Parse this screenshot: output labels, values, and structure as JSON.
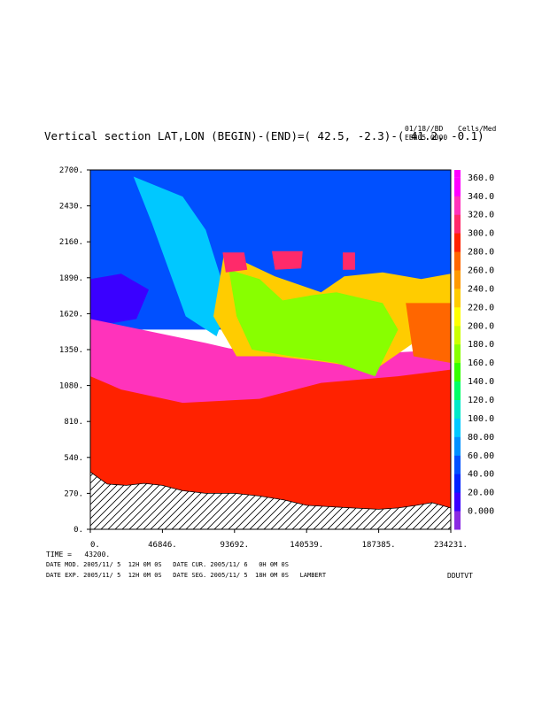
{
  "header": {
    "title": "Vertical section LAT,LON (BEGIN)-(END)=( 42.5, -2.3)-( 41.2, -0.1)",
    "date_code": "01/18//BD",
    "units": "Cells/Med",
    "run": "EBR05 0000"
  },
  "footer": {
    "time": "TIME =   43200.",
    "line1": "DATE MOD. 2005/11/ 5  12H 0M 0S   DATE CUR. 2005/11/ 6   0H 0M 0S",
    "line2": "DATE EXP. 2005/11/ 5  12H 0M 0S   DATE SEG. 2005/11/ 5  18H 0M 0S   LAMBERT",
    "field": "DDUTVT"
  },
  "chart_data": {
    "type": "heatmap",
    "title": "Vertical section LAT,LON (BEGIN)-(END)=( 42.5, -2.3)-( 41.2, -0.1)",
    "xlim": [
      0,
      234231
    ],
    "ylim": [
      0,
      2700
    ],
    "x_ticks": [
      "0.",
      "46846.",
      "93692.",
      "140539.",
      "187385.",
      "234231."
    ],
    "y_ticks": [
      "0.",
      "270.",
      "540.",
      "810.",
      "1080.",
      "1350.",
      "1620.",
      "1890.",
      "2160.",
      "2430.",
      "2700."
    ],
    "colorbar": {
      "levels": [
        "0.000",
        "20.00",
        "40.00",
        "60.00",
        "80.00",
        "100.0",
        "120.0",
        "140.0",
        "160.0",
        "180.0",
        "200.0",
        "220.0",
        "240.0",
        "260.0",
        "280.0",
        "300.0",
        "320.0",
        "340.0",
        "360.0"
      ],
      "colors": [
        "#8a2be2",
        "#3a00ff",
        "#0022ff",
        "#0050ff",
        "#0090ff",
        "#00c8ff",
        "#00e8c8",
        "#00ff66",
        "#33ff00",
        "#88ff00",
        "#ccff00",
        "#ffff00",
        "#ffcc00",
        "#ff9900",
        "#ff6600",
        "#ff2200",
        "#ff2a6a",
        "#ff33bb",
        "#ff00ff"
      ]
    },
    "terrain_height": {
      "x": [
        0,
        11000,
        23400,
        35000,
        46800,
        60000,
        75000,
        93700,
        110000,
        126000,
        140500,
        155000,
        170000,
        187400,
        200000,
        212000,
        222000,
        234231
      ],
      "y": [
        430,
        340,
        330,
        345,
        330,
        290,
        270,
        270,
        250,
        220,
        180,
        170,
        160,
        150,
        160,
        180,
        200,
        160
      ]
    },
    "regions": [
      {
        "level": "60.00",
        "x": [
          0,
          234231,
          234231,
          0
        ],
        "y": [
          1500,
          1500,
          2700,
          2700
        ]
      },
      {
        "level": "100.0",
        "x": [
          28000,
          60000,
          75000,
          90000,
          82000,
          62000,
          40000
        ],
        "y": [
          2650,
          2500,
          2250,
          1700,
          1450,
          1600,
          2300
        ]
      },
      {
        "level": "20.00",
        "x": [
          0,
          20000,
          38000,
          30000,
          15000,
          0
        ],
        "y": [
          1880,
          1920,
          1800,
          1580,
          1550,
          1560
        ]
      },
      {
        "level": "340.0",
        "x": [
          0,
          75000,
          90000,
          110000,
          160000,
          200000,
          234231,
          234231,
          0
        ],
        "y": [
          1580,
          1400,
          1360,
          1330,
          1340,
          1330,
          1350,
          1250,
          1250
        ]
      },
      {
        "level": "340.0",
        "x": [
          0,
          234231,
          234231,
          0
        ],
        "y": [
          0,
          0,
          1300,
          1300
        ]
      },
      {
        "level": "300.0",
        "x": [
          0,
          20000,
          60000,
          110000,
          150000,
          200000,
          234231,
          234231,
          0
        ],
        "y": [
          1150,
          1050,
          950,
          980,
          1100,
          1150,
          1200,
          0,
          0
        ]
      },
      {
        "level": "240.0",
        "x": [
          87000,
          120000,
          150000,
          165000,
          190000,
          215000,
          234231,
          234231,
          210000,
          185000,
          150000,
          120000,
          95000,
          80000
        ],
        "y": [
          2080,
          1900,
          1780,
          1900,
          1930,
          1880,
          1920,
          1500,
          1400,
          1200,
          1260,
          1300,
          1300,
          1600
        ]
      },
      {
        "level": "180.0",
        "x": [
          90000,
          110000,
          125000,
          145000,
          160000,
          175000,
          190000,
          200000,
          185000,
          160000,
          130000,
          105000,
          95000
        ],
        "y": [
          1950,
          1880,
          1720,
          1760,
          1780,
          1740,
          1700,
          1500,
          1150,
          1250,
          1300,
          1350,
          1600
        ]
      },
      {
        "level": "320.0",
        "x": [
          86000,
          100000,
          102000,
          88000
        ],
        "y": [
          2080,
          2080,
          1950,
          1930
        ]
      },
      {
        "level": "320.0",
        "x": [
          118000,
          138000,
          137000,
          120000
        ],
        "y": [
          2090,
          2090,
          1960,
          1950
        ]
      },
      {
        "level": "320.0",
        "x": [
          164000,
          172000,
          172000,
          164000
        ],
        "y": [
          2080,
          2080,
          1950,
          1950
        ]
      },
      {
        "level": "280.0",
        "x": [
          205000,
          234231,
          234231,
          210000
        ],
        "y": [
          1700,
          1700,
          1250,
          1300
        ]
      }
    ]
  }
}
